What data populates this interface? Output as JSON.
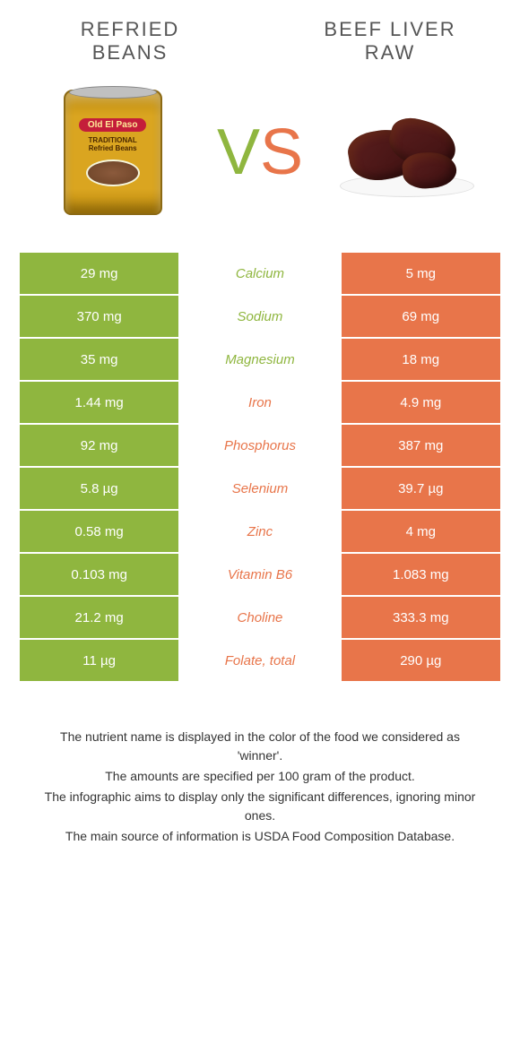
{
  "colors": {
    "green": "#8fb63f",
    "orange": "#e8754a",
    "white": "#ffffff"
  },
  "food_left": {
    "title_line1": "Refried",
    "title_line2": "Beans"
  },
  "food_right": {
    "title_line1": "Beef Liver",
    "title_line2": "Raw"
  },
  "vs": {
    "v": "V",
    "s": "S"
  },
  "can": {
    "brand": "Old El Paso",
    "label": "TRADITIONAL\nRefried Beans"
  },
  "rows": [
    {
      "left": "29 mg",
      "mid": "Calcium",
      "right": "5 mg",
      "winner": "left"
    },
    {
      "left": "370 mg",
      "mid": "Sodium",
      "right": "69 mg",
      "winner": "left"
    },
    {
      "left": "35 mg",
      "mid": "Magnesium",
      "right": "18 mg",
      "winner": "left"
    },
    {
      "left": "1.44 mg",
      "mid": "Iron",
      "right": "4.9 mg",
      "winner": "right"
    },
    {
      "left": "92 mg",
      "mid": "Phosphorus",
      "right": "387 mg",
      "winner": "right"
    },
    {
      "left": "5.8 µg",
      "mid": "Selenium",
      "right": "39.7 µg",
      "winner": "right"
    },
    {
      "left": "0.58 mg",
      "mid": "Zinc",
      "right": "4 mg",
      "winner": "right"
    },
    {
      "left": "0.103 mg",
      "mid": "Vitamin B6",
      "right": "1.083 mg",
      "winner": "right"
    },
    {
      "left": "21.2 mg",
      "mid": "Choline",
      "right": "333.3 mg",
      "winner": "right"
    },
    {
      "left": "11 µg",
      "mid": "Folate, total",
      "right": "290 µg",
      "winner": "right"
    }
  ],
  "footer": {
    "line1": "The nutrient name is displayed in the color of the food we considered as 'winner'.",
    "line2": "The amounts are specified per 100 gram of the product.",
    "line3": "The infographic aims to display only the significant differences, ignoring minor ones.",
    "line4": "The main source of information is USDA Food Composition Database."
  }
}
